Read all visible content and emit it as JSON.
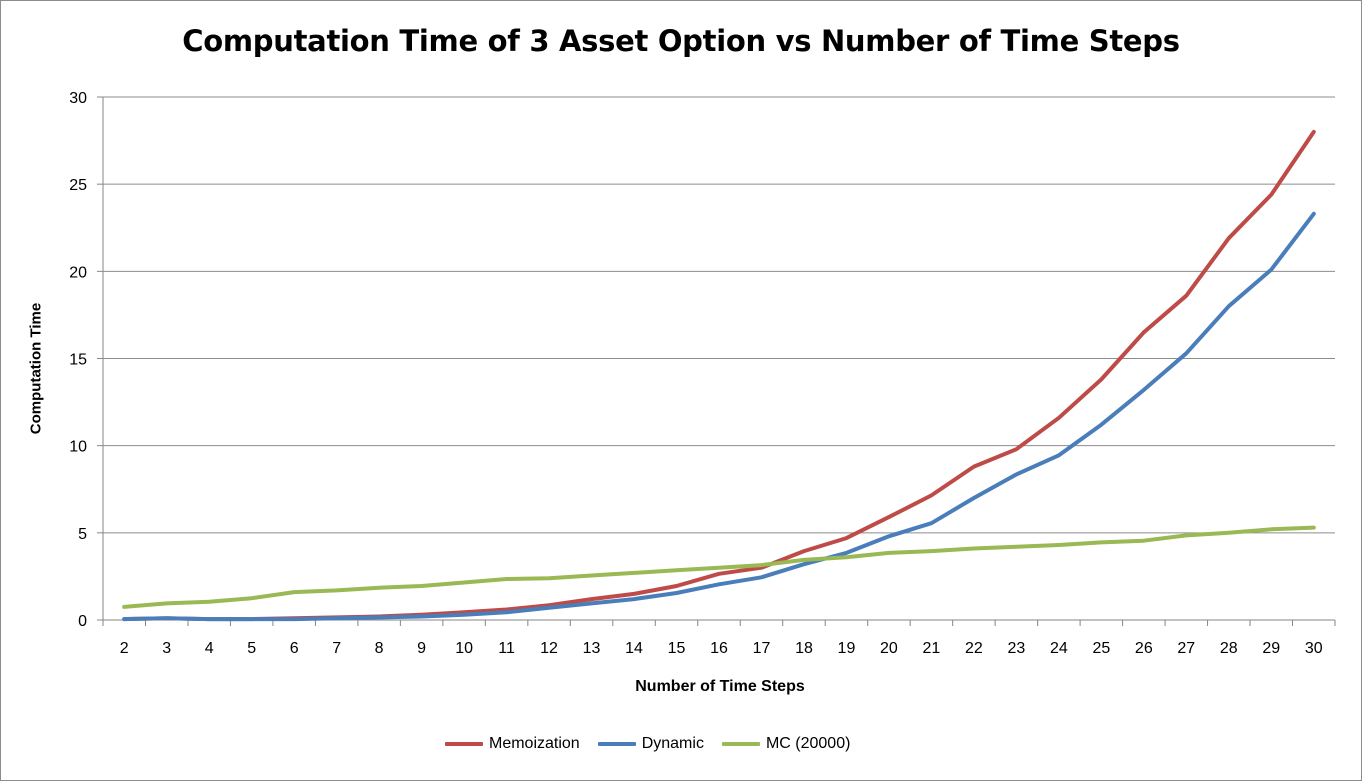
{
  "chart_data": {
    "type": "line",
    "title": "Computation Time of 3 Asset Option vs Number of Time Steps",
    "xlabel": "Number of Time Steps",
    "ylabel": "Computation Time",
    "ylim": [
      0,
      30
    ],
    "yticks": [
      0,
      5,
      10,
      15,
      20,
      25,
      30
    ],
    "grid": true,
    "legend_position": "bottom",
    "categories": [
      2,
      3,
      4,
      5,
      6,
      7,
      8,
      9,
      10,
      11,
      12,
      13,
      14,
      15,
      16,
      17,
      18,
      19,
      20,
      21,
      22,
      23,
      24,
      25,
      26,
      27,
      28,
      29,
      30
    ],
    "series": [
      {
        "name": "Memoization",
        "color": "#be4b48",
        "values": [
          0.05,
          0.1,
          0.05,
          0.05,
          0.1,
          0.15,
          0.2,
          0.3,
          0.45,
          0.6,
          0.85,
          1.2,
          1.5,
          1.95,
          2.65,
          3.0,
          3.95,
          4.7,
          5.9,
          7.15,
          8.8,
          9.8,
          11.6,
          13.8,
          16.5,
          18.6,
          21.9,
          24.4,
          28.0
        ]
      },
      {
        "name": "Dynamic",
        "color": "#4a7ebb",
        "values": [
          0.05,
          0.1,
          0.05,
          0.05,
          0.05,
          0.1,
          0.15,
          0.2,
          0.3,
          0.45,
          0.7,
          0.95,
          1.2,
          1.55,
          2.05,
          2.45,
          3.2,
          3.85,
          4.8,
          5.55,
          7.0,
          8.35,
          9.45,
          11.2,
          13.2,
          15.3,
          18.0,
          20.1,
          23.3
        ]
      },
      {
        "name": "MC (20000)",
        "color": "#98b954",
        "values": [
          0.75,
          0.95,
          1.05,
          1.25,
          1.6,
          1.7,
          1.85,
          1.95,
          2.15,
          2.35,
          2.4,
          2.55,
          2.7,
          2.85,
          3.0,
          3.15,
          3.45,
          3.6,
          3.85,
          3.95,
          4.1,
          4.2,
          4.3,
          4.45,
          4.55,
          4.85,
          5.0,
          5.2,
          5.3
        ]
      }
    ]
  }
}
